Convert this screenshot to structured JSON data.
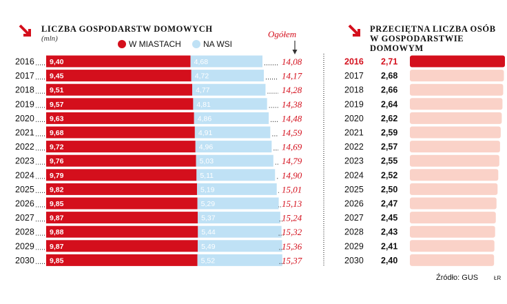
{
  "colors": {
    "red": "#d40f1c",
    "light_blue": "#bfe1f5",
    "peach": "#fad2c8",
    "dots": "#333333"
  },
  "chart_data": [
    {
      "type": "bar",
      "title": "Liczba gospodarstw domowych",
      "unit": "(mln)",
      "total_label": "Ogółem",
      "categories": [
        "2016",
        "2017",
        "2018",
        "2019",
        "2020",
        "2021",
        "2022",
        "2023",
        "2024",
        "2025",
        "2026",
        "2027",
        "2028",
        "2029",
        "2030"
      ],
      "stacked": true,
      "series": [
        {
          "name": "W MIASTACH",
          "color": "#d40f1c",
          "values": [
            9.4,
            9.45,
            9.51,
            9.57,
            9.63,
            9.68,
            9.72,
            9.76,
            9.79,
            9.82,
            9.85,
            9.87,
            9.88,
            9.87,
            9.85
          ],
          "labels": [
            "9,40",
            "9,45",
            "9,51",
            "9,57",
            "9,63",
            "9,68",
            "9,72",
            "9,76",
            "9,79",
            "9,82",
            "9,85",
            "9,87",
            "9,88",
            "9,87",
            "9,85"
          ]
        },
        {
          "name": "NA WSI",
          "color": "#bfe1f5",
          "values": [
            4.68,
            4.72,
            4.77,
            4.81,
            4.86,
            4.91,
            4.96,
            5.03,
            5.11,
            5.19,
            5.29,
            5.37,
            5.44,
            5.49,
            5.52
          ],
          "labels": [
            "4,68",
            "4,72",
            "4,77",
            "4,81",
            "4,86",
            "4,91",
            "4,96",
            "5,03",
            "5,11",
            "5,19",
            "5,29",
            "5,37",
            "5,44",
            "5,49",
            "5,52"
          ]
        }
      ],
      "totals": [
        14.08,
        14.17,
        14.28,
        14.38,
        14.48,
        14.59,
        14.69,
        14.79,
        14.9,
        15.01,
        15.13,
        15.24,
        15.32,
        15.36,
        15.37
      ],
      "total_labels": [
        "14,08",
        "14,17",
        "14,28",
        "14,38",
        "14,48",
        "14,59",
        "14,69",
        "14,79",
        "14,90",
        "15,01",
        "15,13",
        "15,24",
        "15,32",
        "15,36",
        "15,37"
      ]
    },
    {
      "type": "bar",
      "title_line1": "Przeciętna liczba osób",
      "title_line2": "w gospodarstwie domowym",
      "categories": [
        "2016",
        "2017",
        "2018",
        "2019",
        "2020",
        "2021",
        "2022",
        "2023",
        "2024",
        "2025",
        "2026",
        "2027",
        "2028",
        "2029",
        "2030"
      ],
      "values": [
        2.71,
        2.68,
        2.66,
        2.64,
        2.62,
        2.59,
        2.57,
        2.55,
        2.52,
        2.5,
        2.47,
        2.45,
        2.43,
        2.41,
        2.4
      ],
      "labels": [
        "2,71",
        "2,68",
        "2,66",
        "2,64",
        "2,62",
        "2,59",
        "2,57",
        "2,55",
        "2,52",
        "2,50",
        "2,47",
        "2,45",
        "2,43",
        "2,41",
        "2,40"
      ],
      "highlight_index": 0
    }
  ],
  "source": "Źródło: GUS",
  "credit": "ŁR"
}
